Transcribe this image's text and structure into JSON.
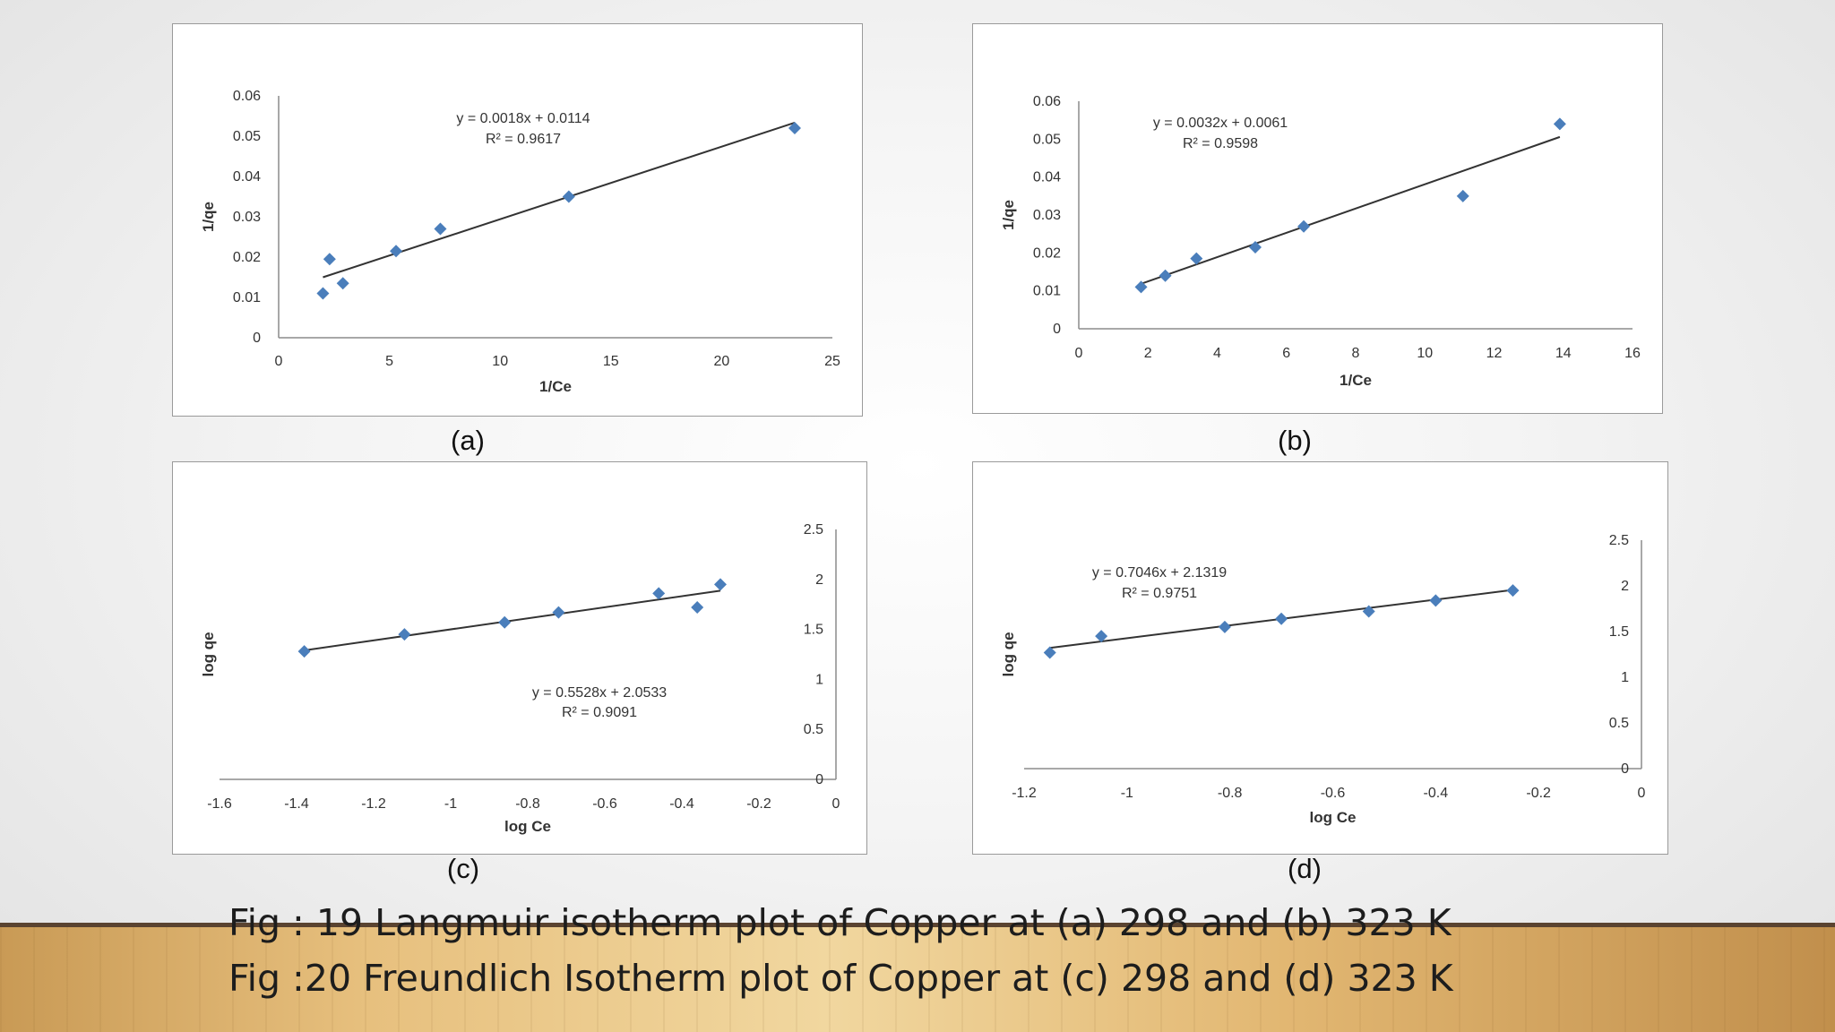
{
  "captions": {
    "line1": "Fig : 19 Langmuir isotherm plot of Copper at (a) 298 and (b) 323 K",
    "line2": "Fig :20 Freundlich Isotherm plot of Copper at (c) 298 and (d) 323 K"
  },
  "colors": {
    "marker": "#4a7ebb",
    "trendline": "#333333",
    "axis": "#8c8c8c"
  },
  "chart_data": [
    {
      "id": "a",
      "panel_label": "(a)",
      "type": "scatter",
      "title": "",
      "xlabel": "1/Ce",
      "ylabel": "1/qe",
      "xlim": [
        0,
        25
      ],
      "ylim": [
        0,
        0.06
      ],
      "x_ticks": [
        "0",
        "5",
        "10",
        "15",
        "20",
        "25"
      ],
      "y_ticks": [
        "0",
        "0.01",
        "0.02",
        "0.03",
        "0.04",
        "0.05",
        "0.06"
      ],
      "y_axis_side": "left",
      "grid": false,
      "legend": "none",
      "points": [
        [
          2.0,
          0.011
        ],
        [
          2.3,
          0.0195
        ],
        [
          2.9,
          0.0135
        ],
        [
          5.3,
          0.0215
        ],
        [
          7.3,
          0.027
        ],
        [
          13.1,
          0.035
        ],
        [
          23.3,
          0.052
        ]
      ],
      "trendline": {
        "slope": 0.0018,
        "intercept": 0.0114,
        "x_range": [
          2.0,
          23.3
        ]
      },
      "annotation": {
        "equation": "y = 0.0018x + 0.0114",
        "r2": "R² = 0.9617"
      }
    },
    {
      "id": "b",
      "panel_label": "(b)",
      "type": "scatter",
      "title": "",
      "xlabel": "1/Ce",
      "ylabel": "1/qe",
      "xlim": [
        0,
        16
      ],
      "ylim": [
        0,
        0.06
      ],
      "x_ticks": [
        "0",
        "2",
        "4",
        "6",
        "8",
        "10",
        "12",
        "14",
        "16"
      ],
      "y_ticks": [
        "0",
        "0.01",
        "0.02",
        "0.03",
        "0.04",
        "0.05",
        "0.06"
      ],
      "y_axis_side": "left",
      "grid": false,
      "legend": "none",
      "points": [
        [
          1.8,
          0.011
        ],
        [
          2.5,
          0.014
        ],
        [
          3.4,
          0.0185
        ],
        [
          5.1,
          0.0215
        ],
        [
          6.5,
          0.027
        ],
        [
          11.1,
          0.035
        ],
        [
          13.9,
          0.054
        ]
      ],
      "trendline": {
        "slope": 0.0032,
        "intercept": 0.0061,
        "x_range": [
          1.8,
          13.9
        ]
      },
      "annotation": {
        "equation": "y = 0.0032x + 0.0061",
        "r2": "R² = 0.9598"
      }
    },
    {
      "id": "c",
      "panel_label": "(c)",
      "type": "scatter",
      "title": "",
      "xlabel": "log Ce",
      "ylabel": "log qe",
      "xlim": [
        -1.6,
        0
      ],
      "ylim": [
        0,
        2.5
      ],
      "x_ticks": [
        "-1.6",
        "-1.4",
        "-1.2",
        "-1",
        "-0.8",
        "-0.6",
        "-0.4",
        "-0.2",
        "0"
      ],
      "y_ticks": [
        "0",
        "0.5",
        "1",
        "1.5",
        "2",
        "2.5"
      ],
      "y_axis_side": "right",
      "grid": false,
      "legend": "none",
      "points": [
        [
          -1.38,
          1.28
        ],
        [
          -1.12,
          1.45
        ],
        [
          -0.86,
          1.57
        ],
        [
          -0.72,
          1.67
        ],
        [
          -0.46,
          1.86
        ],
        [
          -0.36,
          1.72
        ],
        [
          -0.3,
          1.95
        ]
      ],
      "trendline": {
        "slope": 0.5528,
        "intercept": 2.0533,
        "x_range": [
          -1.38,
          -0.3
        ]
      },
      "annotation": {
        "equation": "y = 0.5528x + 2.0533",
        "r2": "R² = 0.9091"
      }
    },
    {
      "id": "d",
      "panel_label": "(d)",
      "type": "scatter",
      "title": "",
      "xlabel": "log Ce",
      "ylabel": "log qe",
      "xlim": [
        -1.2,
        0
      ],
      "ylim": [
        0,
        2.5
      ],
      "x_ticks": [
        "-1.2",
        "-1",
        "-0.8",
        "-0.6",
        "-0.4",
        "-0.2",
        "0"
      ],
      "y_ticks": [
        "0",
        "0.5",
        "1",
        "1.5",
        "2",
        "2.5"
      ],
      "y_axis_side": "right",
      "grid": false,
      "legend": "none",
      "points": [
        [
          -1.15,
          1.27
        ],
        [
          -1.05,
          1.45
        ],
        [
          -0.81,
          1.55
        ],
        [
          -0.7,
          1.64
        ],
        [
          -0.53,
          1.72
        ],
        [
          -0.4,
          1.84
        ],
        [
          -0.25,
          1.95
        ]
      ],
      "trendline": {
        "slope": 0.7046,
        "intercept": 2.1319,
        "x_range": [
          -1.15,
          -0.25
        ]
      },
      "annotation": {
        "equation": "y = 0.7046x + 2.1319",
        "r2": "R² = 0.9751"
      }
    }
  ]
}
